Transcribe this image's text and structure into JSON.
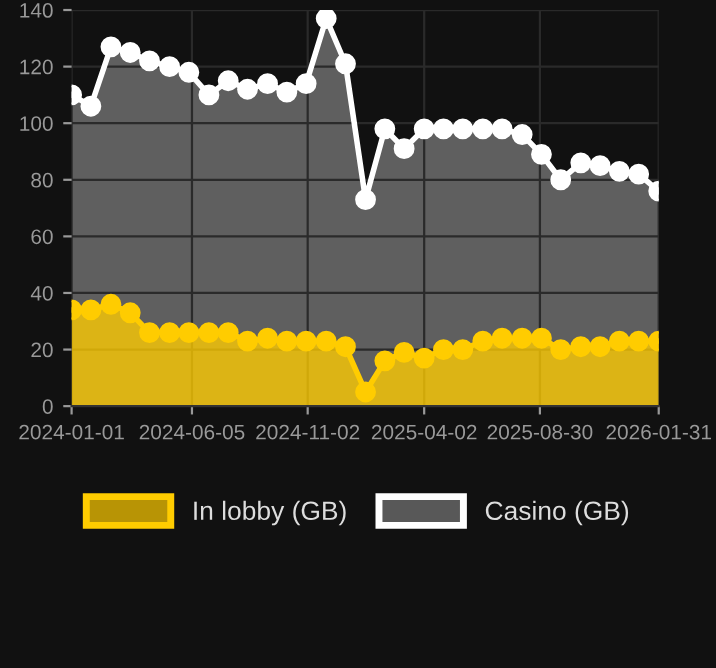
{
  "chart_data": {
    "type": "area",
    "x": [
      "2024-01-01",
      "2024-01-26",
      "2024-02-21",
      "2024-03-17",
      "2024-04-11",
      "2024-05-07",
      "2024-06-01",
      "2024-06-27",
      "2024-07-22",
      "2024-08-16",
      "2024-09-11",
      "2024-10-06",
      "2024-10-31",
      "2024-11-26",
      "2024-12-21",
      "2025-01-16",
      "2025-02-10",
      "2025-03-07",
      "2025-04-02",
      "2025-04-27",
      "2025-05-22",
      "2025-06-17",
      "2025-07-12",
      "2025-08-07",
      "2025-09-01",
      "2025-09-26",
      "2025-10-22",
      "2025-11-16",
      "2025-12-11",
      "2026-01-05",
      "2026-01-31"
    ],
    "series": [
      {
        "name": "In lobby (GB)",
        "color": "#ffcc00",
        "values": [
          34,
          34,
          36,
          33,
          26,
          26,
          26,
          26,
          26,
          23,
          24,
          23,
          23,
          23,
          21,
          5,
          16,
          19,
          17,
          20,
          20,
          23,
          24,
          24,
          24,
          20,
          21,
          21,
          23,
          23,
          23
        ]
      },
      {
        "name": "Casino (GB)",
        "color": "#ffffff",
        "values": [
          110,
          106,
          127,
          125,
          122,
          120,
          118,
          110,
          115,
          112,
          114,
          111,
          114,
          137,
          121,
          73,
          98,
          91,
          98,
          98,
          98,
          98,
          98,
          96,
          89,
          80,
          86,
          85,
          83,
          82,
          76
        ]
      }
    ],
    "xlim": [
      "2024-01-01",
      "2026-01-31"
    ],
    "xticks": [
      "2024-01-01",
      "2024-06-05",
      "2024-11-02",
      "2025-04-02",
      "2025-08-30",
      "2026-01-31"
    ],
    "ylim": [
      0,
      140
    ],
    "yticks": [
      0,
      20,
      40,
      60,
      80,
      100,
      120,
      140
    ],
    "grid": true,
    "legend": "bottom",
    "marker": "circle",
    "line_style": "solid"
  }
}
